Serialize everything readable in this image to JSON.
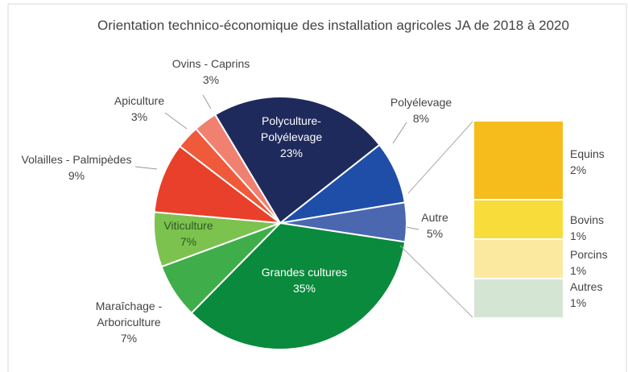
{
  "chart_data": {
    "type": "pie_of_bar",
    "title": "Orientation technico-économique des installation agricoles JA de 2018 à 2020",
    "categories": [
      "Polyculture-Polyélevage",
      "Polyélevage",
      "Autre",
      "Grandes cultures",
      "Maraîchage - Arboriculture",
      "Viticulture",
      "Volailles - Palmipèdes",
      "Apiculture",
      "Ovins - Caprins"
    ],
    "values": [
      23,
      8,
      5,
      35,
      7,
      7,
      9,
      3,
      3
    ],
    "value_labels": [
      "23%",
      "8%",
      "5%",
      "35%",
      "7%",
      "7%",
      "9%",
      "3%",
      "3%"
    ],
    "colors": [
      "#1f2a5c",
      "#1f4ea8",
      "#4a67b0",
      "#0a8a3c",
      "#3fae4a",
      "#7cc24f",
      "#e8402a",
      "#ef5a3a",
      "#f08070"
    ],
    "bar": {
      "categories": [
        "Equins",
        "Bovins",
        "Porcins",
        "Autres"
      ],
      "values": [
        2,
        1,
        1,
        1
      ],
      "value_labels": [
        "2%",
        "1%",
        "1%",
        "1%"
      ],
      "colors": [
        "#f5bc1c",
        "#f7dc3a",
        "#fbe9a0",
        "#d5e5d3"
      ]
    }
  }
}
